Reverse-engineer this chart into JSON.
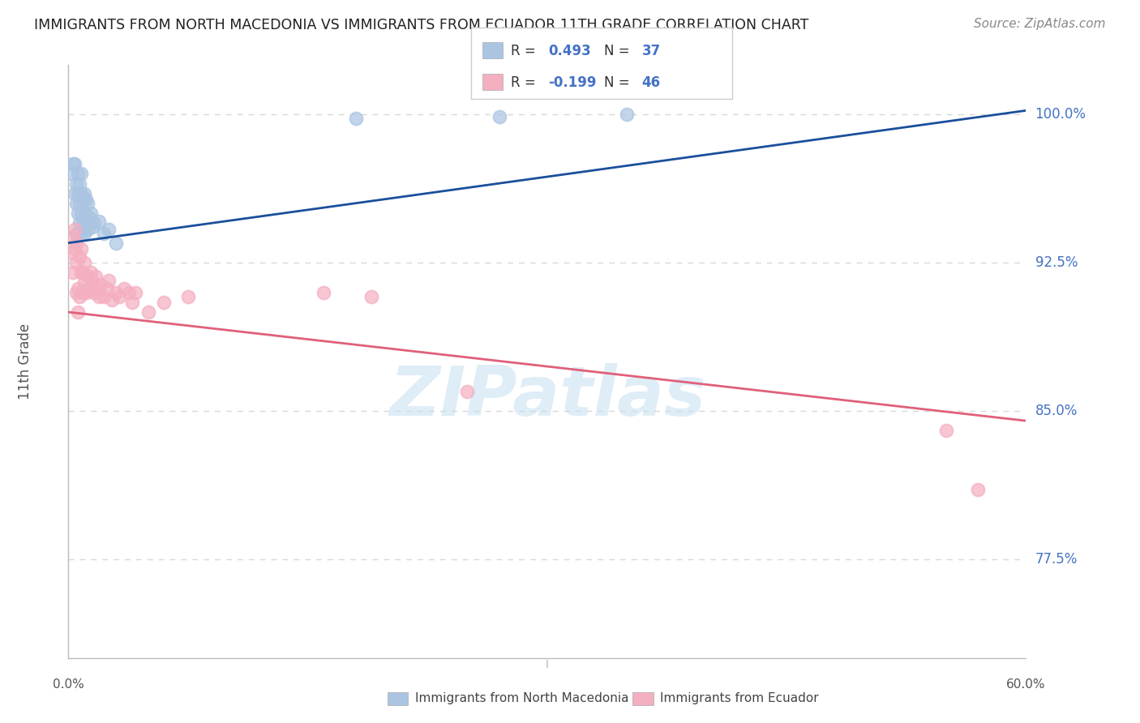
{
  "title": "IMMIGRANTS FROM NORTH MACEDONIA VS IMMIGRANTS FROM ECUADOR 11TH GRADE CORRELATION CHART",
  "source": "Source: ZipAtlas.com",
  "ylabel": "11th Grade",
  "yticks": [
    77.5,
    85.0,
    92.5,
    100.0
  ],
  "xlim": [
    0.0,
    0.6
  ],
  "ylim": [
    0.725,
    1.025
  ],
  "legend_blue_label": "Immigrants from North Macedonia",
  "legend_pink_label": "Immigrants from Ecuador",
  "R_blue": 0.493,
  "N_blue": 37,
  "R_pink": -0.199,
  "N_pink": 46,
  "blue_scatter_color": "#aac4e2",
  "blue_line_color": "#1a4f9c",
  "pink_scatter_color": "#f4afc0",
  "pink_line_color": "#e0607a",
  "blue_scatter_x": [
    0.002,
    0.003,
    0.004,
    0.004,
    0.005,
    0.005,
    0.005,
    0.006,
    0.006,
    0.006,
    0.007,
    0.007,
    0.007,
    0.008,
    0.008,
    0.008,
    0.008,
    0.009,
    0.009,
    0.01,
    0.01,
    0.01,
    0.011,
    0.011,
    0.012,
    0.012,
    0.013,
    0.014,
    0.015,
    0.016,
    0.019,
    0.022,
    0.025,
    0.03,
    0.18,
    0.27,
    0.35
  ],
  "blue_scatter_y": [
    0.97,
    0.975,
    0.96,
    0.975,
    0.955,
    0.965,
    0.94,
    0.95,
    0.96,
    0.97,
    0.945,
    0.955,
    0.965,
    0.94,
    0.95,
    0.96,
    0.97,
    0.945,
    0.957,
    0.94,
    0.95,
    0.96,
    0.945,
    0.957,
    0.942,
    0.955,
    0.948,
    0.95,
    0.943,
    0.945,
    0.946,
    0.94,
    0.942,
    0.935,
    0.998,
    0.999,
    1.0
  ],
  "pink_scatter_x": [
    0.002,
    0.003,
    0.003,
    0.004,
    0.004,
    0.005,
    0.005,
    0.005,
    0.006,
    0.006,
    0.007,
    0.007,
    0.008,
    0.008,
    0.009,
    0.009,
    0.01,
    0.01,
    0.011,
    0.012,
    0.013,
    0.014,
    0.015,
    0.016,
    0.017,
    0.018,
    0.019,
    0.02,
    0.022,
    0.024,
    0.025,
    0.027,
    0.03,
    0.032,
    0.035,
    0.038,
    0.04,
    0.042,
    0.05,
    0.06,
    0.075,
    0.16,
    0.19,
    0.25,
    0.55,
    0.57
  ],
  "pink_scatter_y": [
    0.93,
    0.938,
    0.92,
    0.932,
    0.942,
    0.925,
    0.935,
    0.91,
    0.9,
    0.912,
    0.928,
    0.908,
    0.92,
    0.932,
    0.91,
    0.92,
    0.915,
    0.925,
    0.91,
    0.918,
    0.912,
    0.92,
    0.915,
    0.91,
    0.918,
    0.912,
    0.908,
    0.914,
    0.908,
    0.912,
    0.916,
    0.906,
    0.91,
    0.908,
    0.912,
    0.91,
    0.905,
    0.91,
    0.9,
    0.905,
    0.908,
    0.91,
    0.908,
    0.86,
    0.84,
    0.81
  ],
  "blue_trend_x0": 0.0,
  "blue_trend_y0": 0.935,
  "blue_trend_x1": 0.6,
  "blue_trend_y1": 1.002,
  "pink_trend_x0": 0.0,
  "pink_trend_y0": 0.9,
  "pink_trend_x1": 0.6,
  "pink_trend_y1": 0.845,
  "watermark_text": "ZIPatlas",
  "watermark_color": "#c5dff2",
  "background_color": "#ffffff",
  "grid_color": "#d8d8d8",
  "right_label_color": "#4472c4",
  "title_color": "#222222",
  "source_color": "#888888",
  "axis_label_color": "#555555"
}
